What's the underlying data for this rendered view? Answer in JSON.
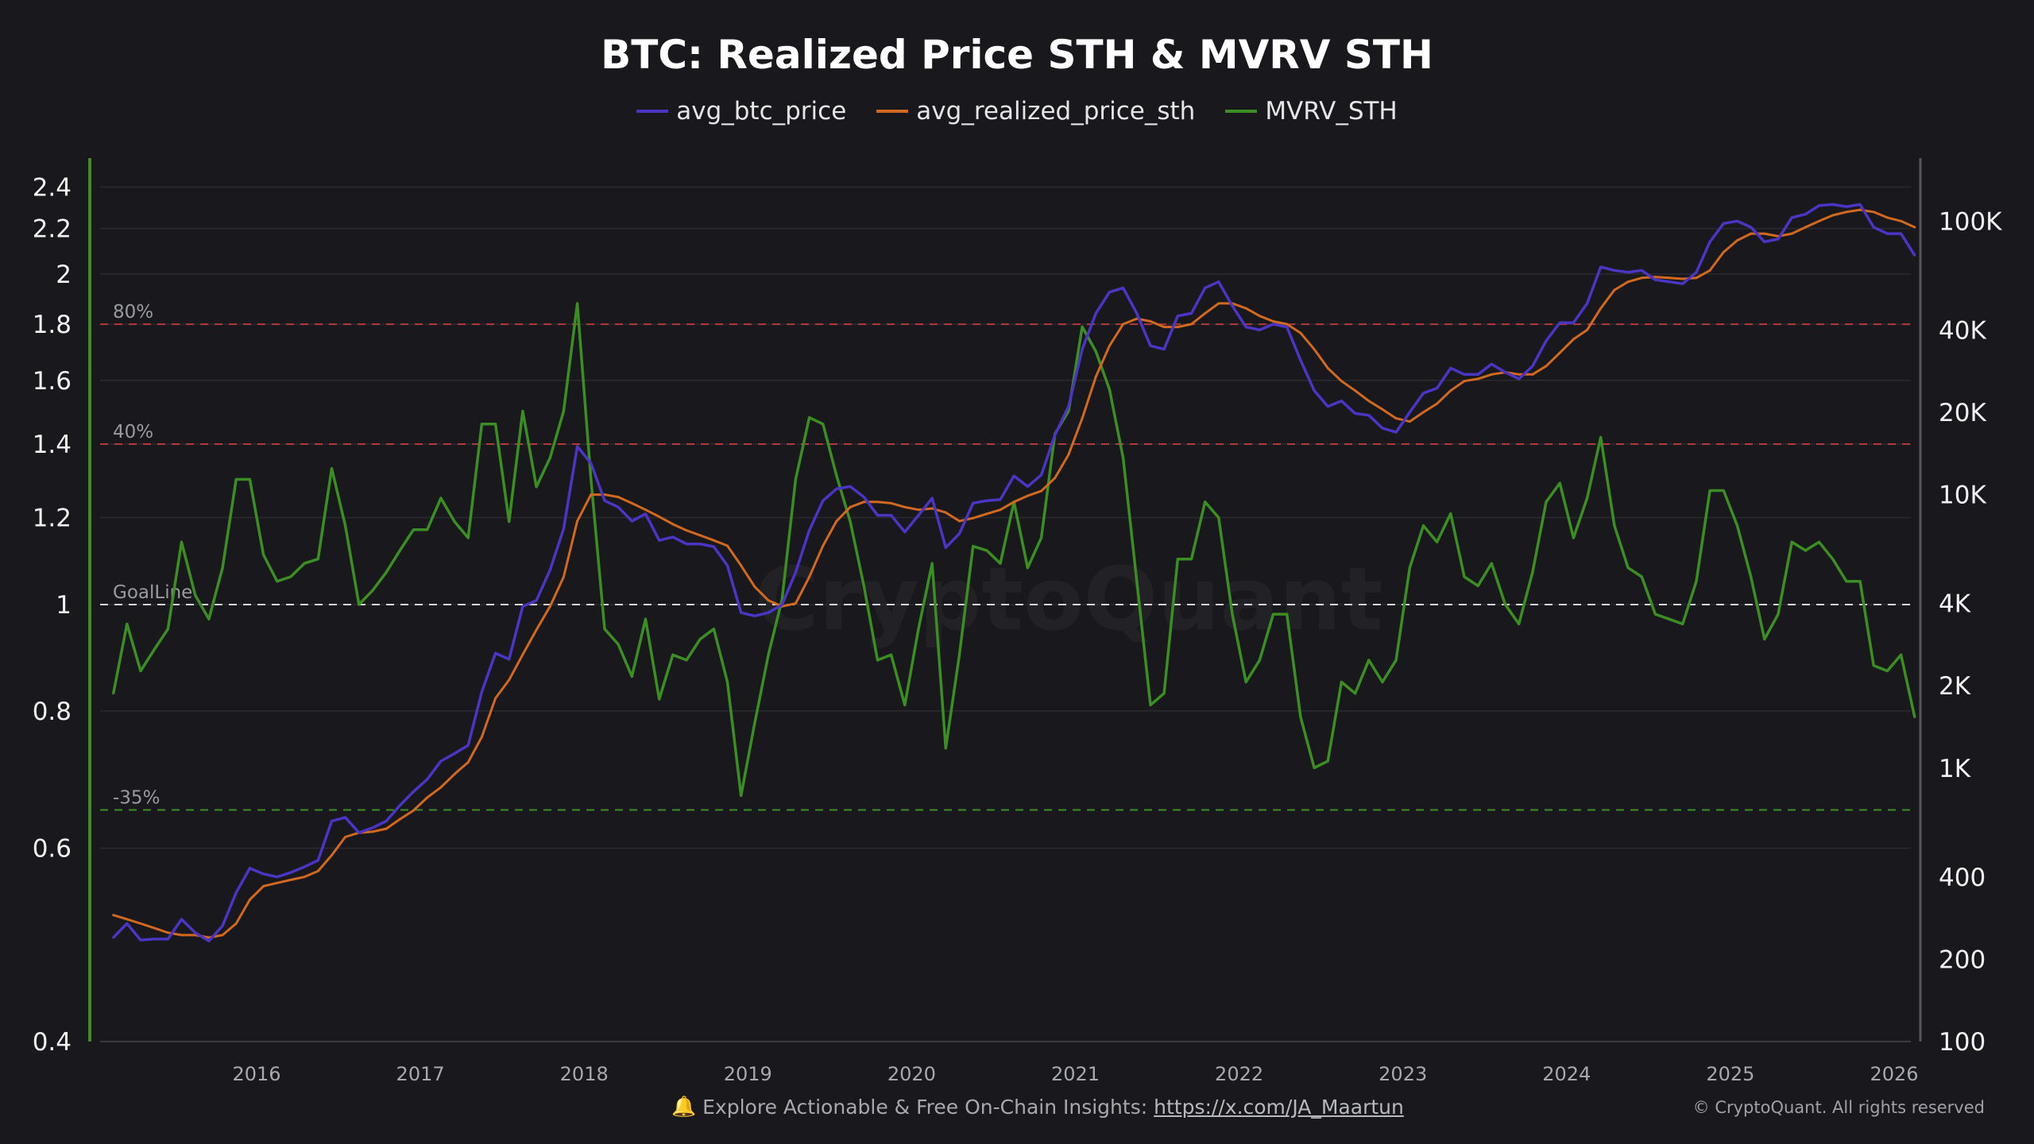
{
  "chart_data": {
    "type": "line",
    "title": "BTC: Realized Price STH & MVRV STH",
    "legend": [
      {
        "name": "avg_btc_price",
        "color": "#4a35c4"
      },
      {
        "name": "avg_realized_price_sth",
        "color": "#d2691e"
      },
      {
        "name": "MVRV_STH",
        "color": "#3b8f22"
      }
    ],
    "legend_placement": "top-center",
    "x_start": "2015-02",
    "x_step": "month",
    "x_ticks": [
      "2016",
      "2017",
      "2018",
      "2019",
      "2020",
      "2021",
      "2022",
      "2023",
      "2024",
      "2025",
      "2026"
    ],
    "left_axis": {
      "scale": "log",
      "range": [
        0.4,
        2.55
      ],
      "ticks": [
        "0.4",
        "0.6",
        "0.8",
        "1",
        "1.2",
        "1.4",
        "1.6",
        "1.8",
        "2",
        "2.2",
        "2.4"
      ],
      "series": "MVRV_STH"
    },
    "right_axis": {
      "scale": "log",
      "range": [
        100,
        170000
      ],
      "ticks": [
        "100",
        "200",
        "400",
        "1K",
        "2K",
        "4K",
        "10K",
        "20K",
        "40K",
        "100K"
      ],
      "tick_values": [
        100,
        200,
        400,
        1000,
        2000,
        4000,
        10000,
        20000,
        40000,
        100000
      ],
      "series": [
        "avg_btc_price",
        "avg_realized_price_sth"
      ]
    },
    "reference_lines": [
      {
        "label": "80%",
        "value": 1.8,
        "color": "#b33a3a"
      },
      {
        "label": "40%",
        "value": 1.4,
        "color": "#b33a3a"
      },
      {
        "label": "GoalLine",
        "value": 1.0,
        "color": "#d8d8d8"
      },
      {
        "label": "-35%",
        "value": 0.65,
        "color": "#3b8f22"
      }
    ],
    "grid": true,
    "series": [
      {
        "name": "avg_btc_price",
        "axis": "right",
        "values": [
          240,
          270,
          235,
          237,
          237,
          280,
          250,
          233,
          265,
          350,
          430,
          410,
          400,
          415,
          435,
          460,
          640,
          660,
          580,
          605,
          640,
          730,
          820,
          910,
          1060,
          1130,
          1210,
          1900,
          2630,
          2500,
          3900,
          4100,
          5300,
          7500,
          15000,
          13000,
          9500,
          9000,
          8000,
          8500,
          6800,
          7000,
          6600,
          6600,
          6450,
          5500,
          3700,
          3600,
          3700,
          3950,
          5200,
          7400,
          9500,
          10500,
          10700,
          9800,
          8400,
          8400,
          7300,
          8400,
          9700,
          6400,
          7200,
          9300,
          9500,
          9600,
          11700,
          10700,
          11800,
          16500,
          21000,
          34000,
          46000,
          55000,
          57000,
          46000,
          35000,
          34000,
          45000,
          46000,
          57000,
          60000,
          49000,
          41000,
          40000,
          42000,
          41000,
          31000,
          24000,
          21000,
          22000,
          19800,
          19500,
          17500,
          16900,
          20000,
          23500,
          24500,
          29000,
          27500,
          27500,
          30000,
          28000,
          26500,
          29500,
          36500,
          42500,
          42500,
          50000,
          68000,
          66000,
          65000,
          66000,
          61000,
          60000,
          59000,
          65000,
          84000,
          98000,
          100000,
          95000,
          84000,
          86000,
          103000,
          106000,
          114000,
          115000,
          113000,
          115000,
          95000,
          90000,
          90000,
          75000
        ]
      },
      {
        "name": "avg_realized_price_sth",
        "axis": "right",
        "values": [
          290,
          280,
          270,
          260,
          250,
          245,
          245,
          240,
          245,
          270,
          330,
          370,
          380,
          390,
          400,
          420,
          480,
          560,
          580,
          585,
          600,
          650,
          700,
          780,
          850,
          950,
          1050,
          1300,
          1800,
          2100,
          2600,
          3200,
          3900,
          5000,
          8000,
          10000,
          10000,
          9800,
          9300,
          8800,
          8300,
          7800,
          7400,
          7100,
          6800,
          6500,
          5500,
          4600,
          4100,
          3900,
          4000,
          5000,
          6500,
          8000,
          9000,
          9400,
          9400,
          9300,
          9000,
          8800,
          8900,
          8600,
          8000,
          8200,
          8500,
          8800,
          9400,
          9900,
          10300,
          11500,
          14000,
          19000,
          27000,
          35000,
          42000,
          44000,
          43000,
          41000,
          41000,
          42000,
          46000,
          50000,
          50000,
          48000,
          45000,
          43000,
          42000,
          39000,
          34000,
          29000,
          26000,
          24000,
          22000,
          20500,
          19000,
          18500,
          20000,
          21500,
          24000,
          26000,
          26500,
          27500,
          28000,
          27500,
          27500,
          29500,
          33000,
          37000,
          40000,
          48000,
          56000,
          60000,
          62000,
          62500,
          62000,
          61500,
          62000,
          66000,
          77000,
          85000,
          90000,
          90000,
          88000,
          90000,
          95000,
          100000,
          105000,
          108000,
          110000,
          108000,
          103000,
          100000,
          95000
        ]
      },
      {
        "name": "MVRV_STH",
        "axis": "left",
        "values": [
          0.83,
          0.96,
          0.87,
          0.91,
          0.95,
          1.14,
          1.02,
          0.97,
          1.08,
          1.3,
          1.3,
          1.11,
          1.05,
          1.06,
          1.09,
          1.1,
          1.33,
          1.18,
          1.0,
          1.03,
          1.07,
          1.12,
          1.17,
          1.17,
          1.25,
          1.19,
          1.15,
          1.46,
          1.46,
          1.19,
          1.5,
          1.28,
          1.36,
          1.5,
          1.88,
          1.3,
          0.95,
          0.92,
          0.86,
          0.97,
          0.82,
          0.9,
          0.89,
          0.93,
          0.95,
          0.85,
          0.67,
          0.78,
          0.9,
          1.01,
          1.3,
          1.48,
          1.46,
          1.31,
          1.19,
          1.04,
          0.89,
          0.9,
          0.81,
          0.95,
          1.09,
          0.74,
          0.9,
          1.13,
          1.12,
          1.09,
          1.24,
          1.08,
          1.15,
          1.43,
          1.5,
          1.79,
          1.7,
          1.57,
          1.36,
          1.05,
          0.81,
          0.83,
          1.1,
          1.1,
          1.24,
          1.2,
          0.98,
          0.85,
          0.89,
          0.98,
          0.98,
          0.79,
          0.71,
          0.72,
          0.85,
          0.83,
          0.89,
          0.85,
          0.89,
          1.08,
          1.18,
          1.14,
          1.21,
          1.06,
          1.04,
          1.09,
          1.0,
          0.96,
          1.07,
          1.24,
          1.29,
          1.15,
          1.25,
          1.42,
          1.18,
          1.08,
          1.06,
          0.98,
          0.97,
          0.96,
          1.05,
          1.27,
          1.27,
          1.18,
          1.06,
          0.93,
          0.98,
          1.14,
          1.12,
          1.14,
          1.1,
          1.05,
          1.05,
          0.88,
          0.87,
          0.9,
          0.79
        ]
      }
    ]
  },
  "watermark": "CryptoQuant",
  "footer": {
    "icon": "bell-icon",
    "text": "Explore Actionable & Free On-Chain Insights:",
    "link": "https://x.com/JA_Maartun",
    "copyright": "© CryptoQuant. All rights reserved"
  }
}
